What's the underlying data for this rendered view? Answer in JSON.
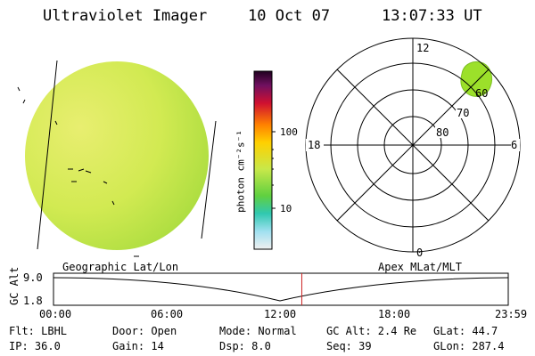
{
  "header": {
    "instrument": "Ultraviolet Imager",
    "date": "10 Oct 07",
    "time": "13:07:33 UT"
  },
  "colorbar": {
    "unit_label": "photon cm⁻²s⁻¹",
    "tick_100": "100",
    "tick_10": "10"
  },
  "polar_plot": {
    "mlt_labels": [
      "12",
      "18",
      "6",
      "0"
    ],
    "lat_labels": [
      "80",
      "70",
      "60"
    ]
  },
  "timeline": {
    "title_left": "Geographic Lat/Lon",
    "title_right": "Apex MLat/MLT",
    "y_axis_label": "GC Alt",
    "y_ticks": [
      "9.0",
      "1.8"
    ],
    "x_ticks": [
      "00:00",
      "06:00",
      "12:00",
      "18:00",
      "23:59"
    ],
    "current_time_fraction": 0.546
  },
  "status": {
    "flt": "Flt: LBHL",
    "ip": "IP: 36.0",
    "door": "Door: Open",
    "gain": "Gain: 14",
    "mode": "Mode: Normal",
    "dsp": "Dsp:    8.0",
    "gc_alt": "GC Alt: 2.4 Re",
    "seq": "Seq: 39",
    "glat": "GLat:  44.7",
    "glon": "GLon: 287.4"
  },
  "colors": {
    "earth_fill": "#c8e84a",
    "aurora": "#9ce02a",
    "marker": "#cc2222"
  }
}
